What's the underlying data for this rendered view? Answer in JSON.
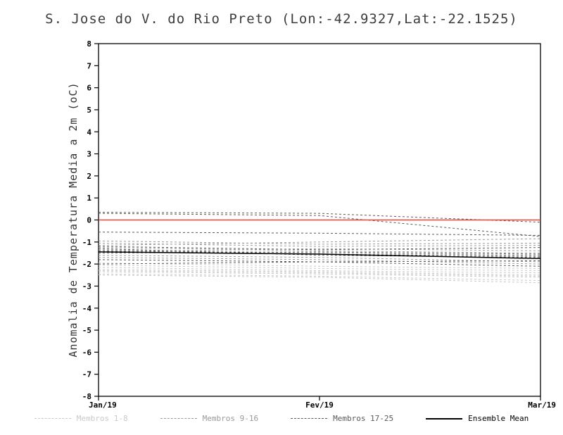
{
  "title": "S. Jose do V. do Rio Preto (Lon:-42.9327,Lat:-22.1525)",
  "chart_data": {
    "type": "line",
    "title": "S. Jose do V. do Rio Preto (Lon:-42.9327,Lat:-22.1525)",
    "xlabel": "",
    "ylabel": "Anomalia de Temperatura Media a 2m (oC)",
    "x_categories": [
      "Jan/19",
      "Fev/19",
      "Mar/19"
    ],
    "ylim": [
      -8,
      8
    ],
    "ytick_step": 1,
    "grid": false,
    "legend_position": "bottom",
    "zero_line": {
      "value": 0,
      "color": "#e84338",
      "style": "solid"
    },
    "series_groups": [
      {
        "name": "Membros 1-8",
        "color": "#c9c9c9",
        "style": "dashed",
        "members": [
          [
            -2.35,
            -2.45,
            -2.6
          ],
          [
            -2.45,
            -2.55,
            -2.75
          ],
          [
            -2.25,
            -2.35,
            -2.5
          ],
          [
            -2.15,
            -2.3,
            -2.4
          ],
          [
            -2.05,
            -2.2,
            -2.3
          ],
          [
            -2.5,
            -2.6,
            -2.85
          ],
          [
            -1.95,
            -2.1,
            -2.2
          ],
          [
            -2.3,
            -2.4,
            -2.55
          ]
        ]
      },
      {
        "name": "Membros 9-16",
        "color": "#9a9a9a",
        "style": "dashed",
        "members": [
          [
            -0.95,
            -1.1,
            -1.05
          ],
          [
            -1.05,
            -1.2,
            -1.15
          ],
          [
            -1.15,
            -1.0,
            -0.85
          ],
          [
            -1.25,
            -1.4,
            -1.5
          ],
          [
            -1.35,
            -1.5,
            -1.6
          ],
          [
            -1.45,
            -1.3,
            -1.4
          ],
          [
            -1.6,
            -1.7,
            -1.9
          ],
          [
            -1.7,
            -1.8,
            -2.0
          ]
        ]
      },
      {
        "name": "Membros 17-25",
        "color": "#5a5a5a",
        "style": "dashed",
        "members": [
          [
            0.35,
            0.3,
            -0.1
          ],
          [
            0.3,
            0.2,
            -0.75
          ],
          [
            -0.55,
            -0.6,
            -0.7
          ],
          [
            -1.2,
            -1.35,
            -1.25
          ],
          [
            -1.4,
            -1.55,
            -1.65
          ],
          [
            -1.5,
            -1.45,
            -1.55
          ],
          [
            -1.8,
            -1.9,
            -2.1
          ],
          [
            -2.0,
            -1.9,
            -1.85
          ],
          [
            -1.3,
            -1.6,
            -1.7
          ]
        ]
      }
    ],
    "ensemble_mean": {
      "name": "Ensemble Mean",
      "color": "#000000",
      "style": "solid",
      "values": [
        -1.45,
        -1.55,
        -1.75
      ]
    }
  }
}
